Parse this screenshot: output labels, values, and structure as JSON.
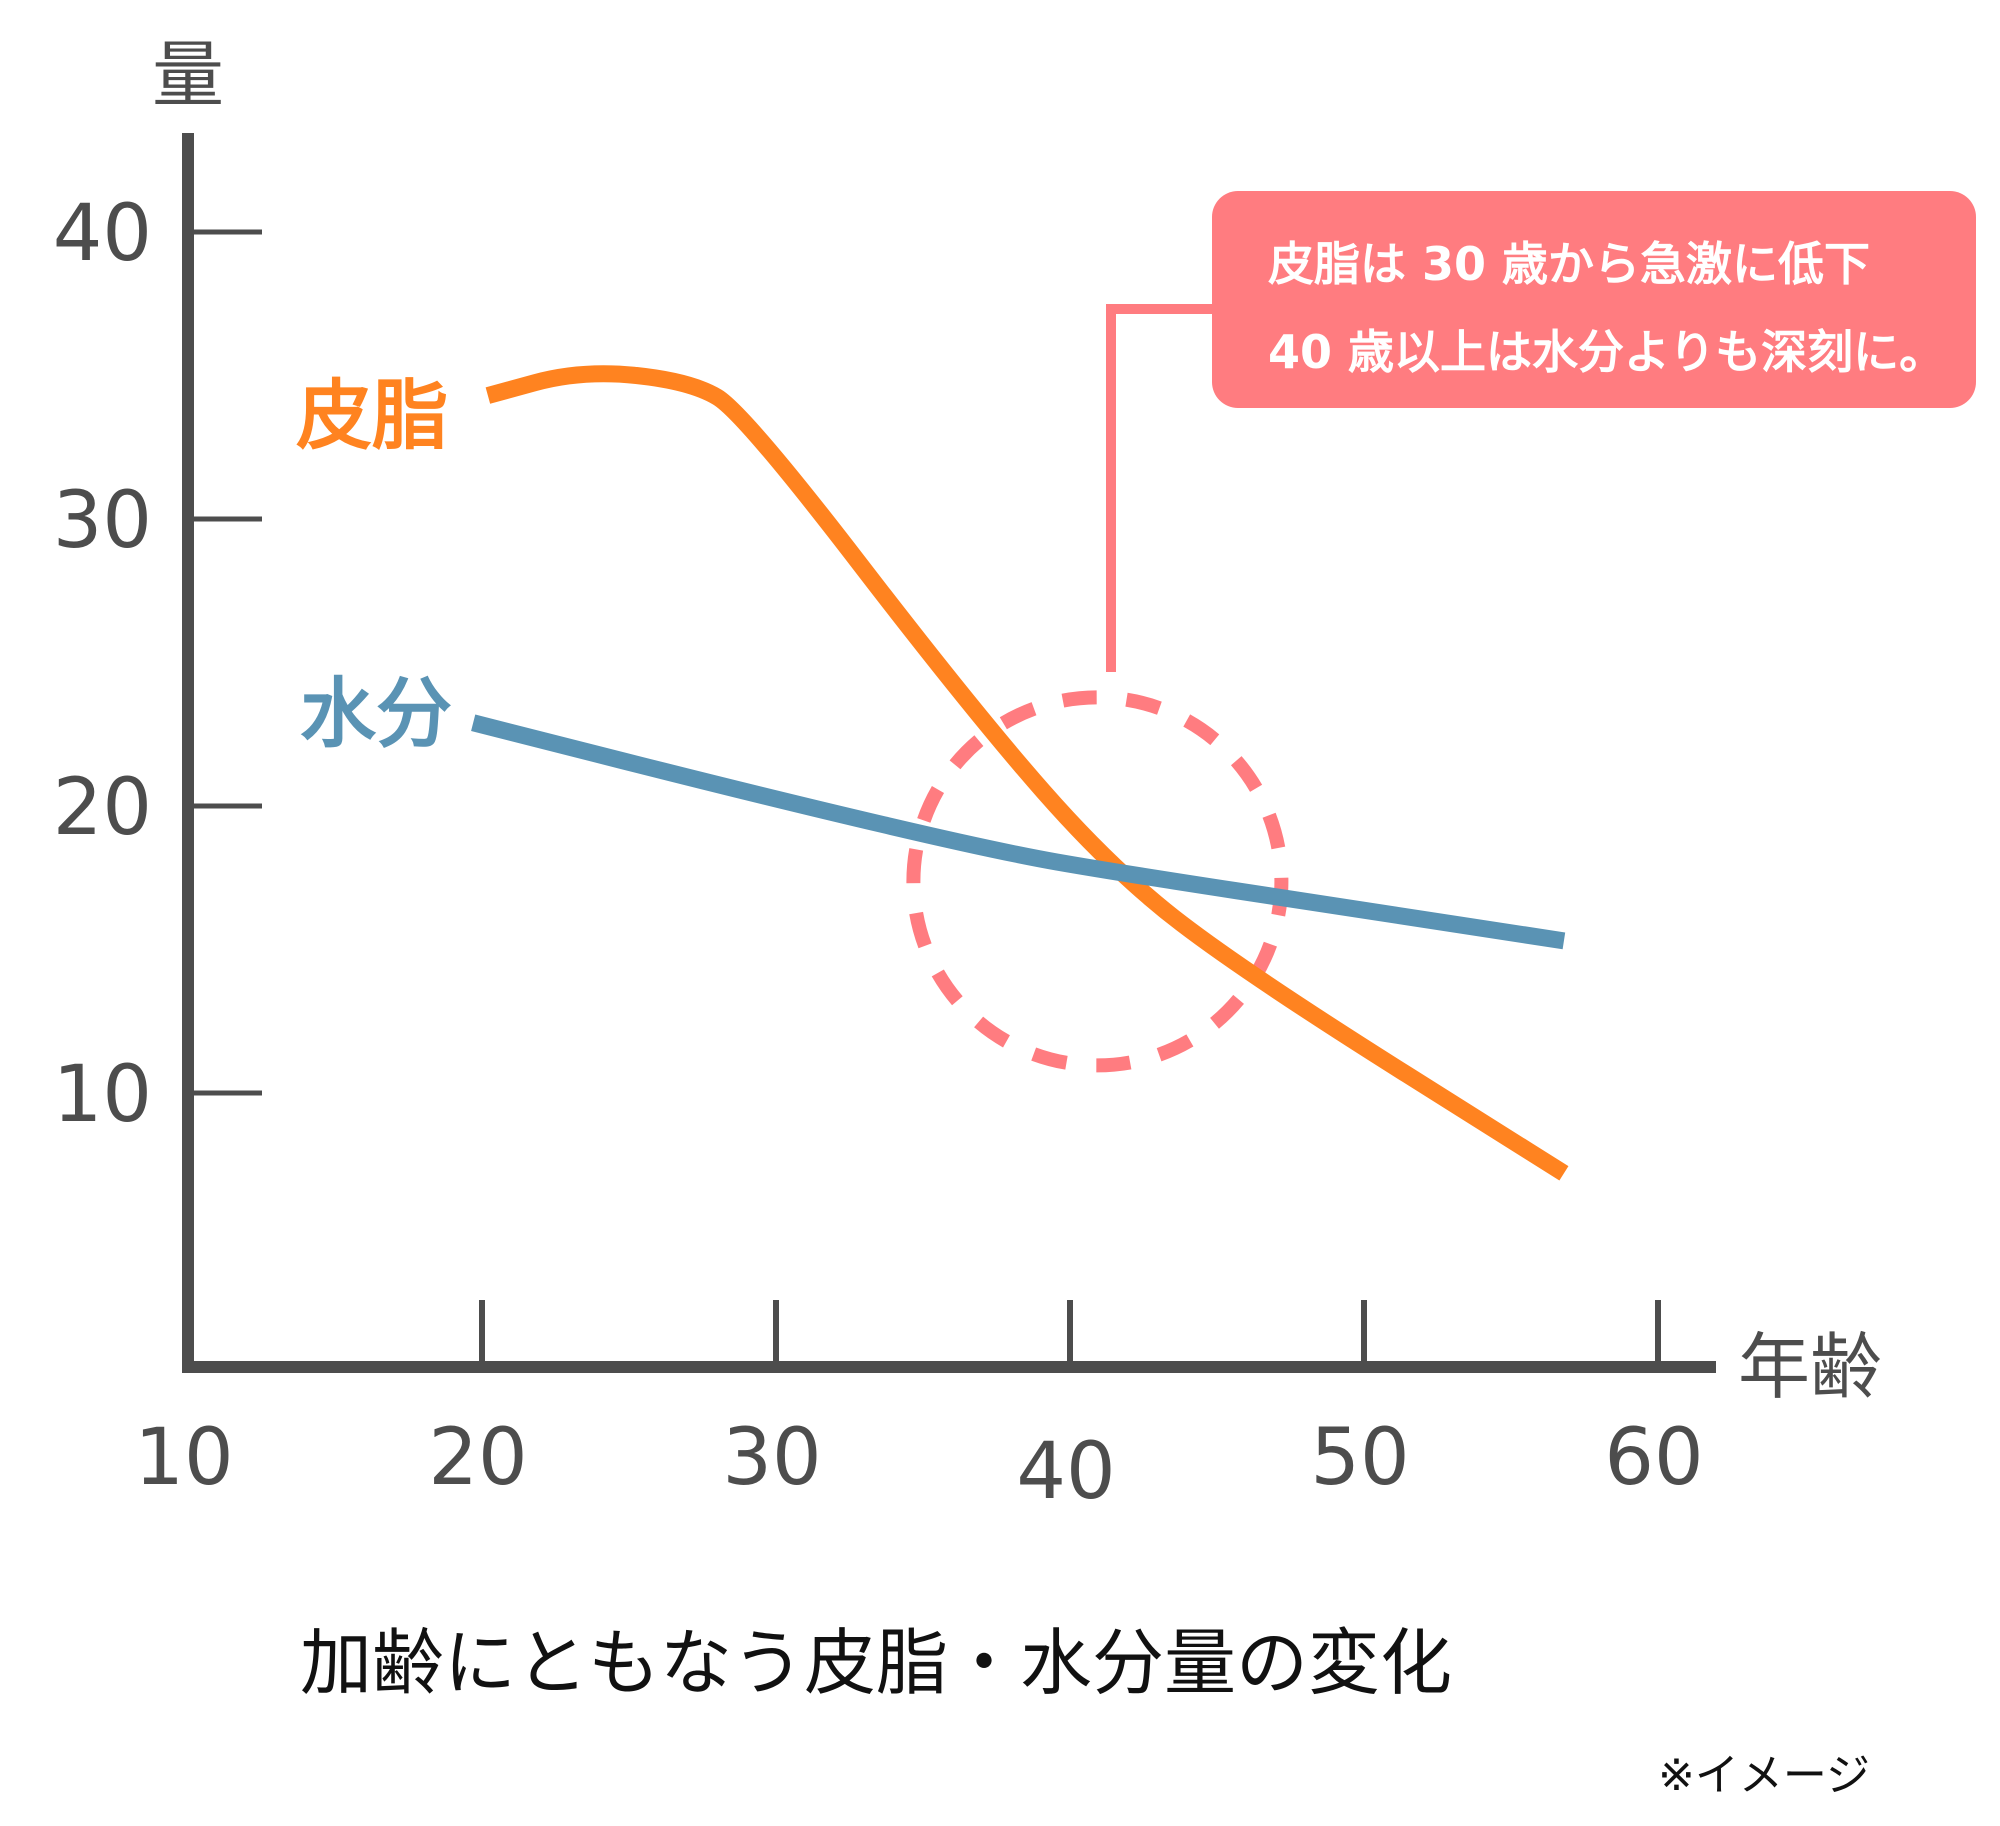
{
  "chart_data": {
    "type": "line",
    "title": "加齢にともなう皮脂・水分量の変化",
    "note": "※イメージ",
    "xlabel": "年齢",
    "ylabel": "量",
    "xlim": [
      10,
      62
    ],
    "ylim": [
      0,
      44
    ],
    "x_ticks": [
      10,
      20,
      30,
      40,
      50,
      60
    ],
    "x_tick_labels": [
      "10",
      "20",
      "30",
      "40",
      "50",
      "60"
    ],
    "y_ticks": [
      10,
      20,
      30,
      40
    ],
    "y_tick_labels": [
      "10",
      "20",
      "30",
      "40"
    ],
    "grid": false,
    "series": [
      {
        "name": "皮脂",
        "color": "#ff8320",
        "x": [
          20.2,
          23.4,
          27.1,
          28.9,
          36.7,
          41.5,
          46.1,
          56.8
        ],
        "y": [
          34.3,
          35.2,
          34.8,
          33.7,
          23.3,
          17.7,
          14.1,
          7.2
        ]
      },
      {
        "name": "水分",
        "color": "#5a93b4",
        "x": [
          19.7,
          29.7,
          37.6,
          41.5,
          49.8,
          56.8
        ],
        "y": [
          22.9,
          20.3,
          18.4,
          17.7,
          16.4,
          15.3
        ]
      }
    ],
    "annotation": {
      "lines": [
        "皮脂は 30 歳から急激に低下",
        "40 歳以上は水分よりも深刻に。"
      ],
      "color": "#ff7c80",
      "highlight_center": [
        41,
        18
      ]
    }
  },
  "colors": {
    "axis": "#4d4d4d",
    "callout": "#ff7c80"
  }
}
